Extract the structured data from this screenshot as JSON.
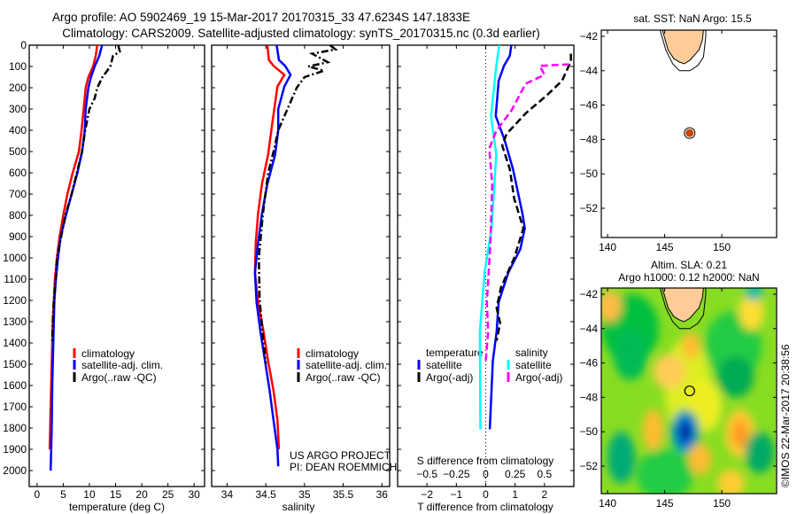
{
  "header": {
    "title_line1": "Argo profile: AO 5902469_19 15-Mar-2017 20170315_33 47.6234S 147.1833E",
    "title_line2": "Climatology: CARS2009. Satellite-adjusted climatology: synTS_20170315.nc (0.3d earlier)"
  },
  "colors": {
    "climatology": "#ff0000",
    "satellite": "#0000ff",
    "argo": "#000000",
    "sal_satellite": "#00ffff",
    "sal_argo": "#ff00ff",
    "land": "#ffcc99",
    "float": "#cc4400"
  },
  "chart_data": [
    {
      "type": "line",
      "id": "temperature",
      "xlabel": "temperature (deg C)",
      "ylabel": "",
      "xlim": [
        -1.5,
        32
      ],
      "ylim": [
        2075,
        0
      ],
      "xticks": [
        0,
        5,
        10,
        15,
        20,
        25,
        30
      ],
      "yticks": [
        0,
        100,
        200,
        300,
        400,
        500,
        600,
        700,
        800,
        900,
        1000,
        1100,
        1200,
        1300,
        1400,
        1500,
        1600,
        1700,
        1800,
        1900,
        2000
      ],
      "legend": [
        "climatology",
        "satellite-adj. clim.",
        "Argo(..raw -QC)"
      ],
      "series": [
        {
          "name": "climatology",
          "depth": [
            0,
            50,
            100,
            150,
            200,
            300,
            400,
            500,
            600,
            700,
            800,
            900,
            1000,
            1100,
            1200,
            1300,
            1400,
            1500,
            1700,
            1900
          ],
          "values": [
            11.5,
            11.2,
            10.7,
            9.8,
            9.3,
            8.9,
            8.5,
            8.0,
            6.8,
            5.8,
            5.0,
            4.3,
            3.8,
            3.4,
            3.2,
            3.0,
            2.9,
            2.8,
            2.6,
            2.4
          ]
        },
        {
          "name": "satellite-adj. clim.",
          "depth": [
            0,
            50,
            100,
            150,
            200,
            300,
            400,
            500,
            600,
            700,
            800,
            900,
            1000,
            1100,
            1200,
            1400,
            1600,
            1800,
            2000
          ],
          "values": [
            12.4,
            11.9,
            11.0,
            10.3,
            9.8,
            9.3,
            9.1,
            8.6,
            7.7,
            6.6,
            5.5,
            4.5,
            4.0,
            3.6,
            3.3,
            3.1,
            2.9,
            2.8,
            2.6
          ]
        },
        {
          "name": "Argo(..raw -QC)",
          "depth": [
            0,
            30,
            50,
            100,
            150,
            200,
            250,
            300,
            400,
            500,
            600,
            700,
            800,
            900,
            1000,
            1100,
            1200,
            1300,
            1400
          ],
          "values": [
            15.5,
            15.8,
            14.5,
            14.0,
            12.5,
            11.5,
            11.0,
            10.0,
            9.2,
            8.6,
            7.6,
            6.6,
            5.4,
            4.6,
            3.8,
            3.6,
            3.2,
            3.0,
            2.9
          ]
        }
      ]
    },
    {
      "type": "line",
      "id": "salinity",
      "xlabel": "salinity",
      "xlim": [
        33.8,
        36.1
      ],
      "ylim": [
        2075,
        0
      ],
      "xticks": [
        34,
        34.5,
        35,
        35.5,
        36
      ],
      "legend": [
        "climatology",
        "satellite-adj. clim.",
        "Argo(..raw -QC)"
      ],
      "annotation": [
        "US ARGO PROJECT",
        "PI: DEAN ROEMMICH"
      ],
      "series": [
        {
          "name": "climatology",
          "depth": [
            0,
            70,
            97,
            139,
            194,
            375,
            514,
            653,
            792,
            931,
            1069,
            1208,
            1347,
            1486,
            1625,
            1764,
            1900
          ],
          "values": [
            34.52,
            34.54,
            34.6,
            34.74,
            34.65,
            34.58,
            34.53,
            34.45,
            34.4,
            34.37,
            34.36,
            34.4,
            34.47,
            34.53,
            34.6,
            34.65,
            34.67
          ]
        },
        {
          "name": "satellite-adj. clim.",
          "depth": [
            0,
            70,
            97,
            139,
            194,
            300,
            400,
            514,
            653,
            792,
            931,
            1069,
            1208,
            1347,
            1486,
            1625,
            1764,
            1900,
            1980
          ],
          "values": [
            34.64,
            34.67,
            34.75,
            34.82,
            34.74,
            34.66,
            34.66,
            34.62,
            34.52,
            34.45,
            34.4,
            34.36,
            34.38,
            34.43,
            34.49,
            34.55,
            34.6,
            34.65,
            34.66
          ]
        },
        {
          "name": "Argo(..raw -QC)",
          "depth": [
            0,
            20,
            40,
            80,
            100,
            120,
            150,
            200,
            300,
            400,
            500,
            600,
            800,
            1000,
            1200,
            1400,
            1500
          ],
          "values": [
            35.33,
            35.4,
            35.1,
            35.3,
            35.05,
            35.25,
            35.0,
            34.9,
            34.78,
            34.66,
            34.6,
            34.53,
            34.46,
            34.41,
            34.42,
            34.47,
            34.5
          ]
        }
      ]
    },
    {
      "type": "line",
      "id": "difference",
      "xlabel": "T difference from climatology",
      "x2label": "S difference from climatology",
      "xlim": [
        -3,
        3
      ],
      "x2lim": [
        -0.75,
        0.75
      ],
      "ylim": [
        2075,
        0
      ],
      "xticks": [
        -2,
        -1,
        0,
        1,
        2
      ],
      "x2ticks": [
        -0.5,
        -0.25,
        0,
        0.25,
        0.5
      ],
      "legend_titles": [
        "temperature",
        "salinity"
      ],
      "legend": [
        "satellite",
        "Argo(-adj)",
        "satellite",
        "Argo(-adj)"
      ],
      "series": [
        {
          "name": "T satellite",
          "axis": "T",
          "depth": [
            0,
            50,
            97,
            167,
            333,
            444,
            583,
            792,
            861,
            958,
            1069,
            1208,
            1347,
            1486,
            1806
          ],
          "values": [
            0.87,
            0.82,
            0.62,
            0.44,
            0.34,
            0.64,
            0.93,
            1.25,
            1.33,
            1.18,
            0.77,
            0.44,
            0.37,
            0.24,
            0.14
          ]
        },
        {
          "name": "T Argo(-adj)",
          "axis": "T",
          "depth": [
            40,
            76,
            167,
            236,
            319,
            417,
            472,
            583,
            722,
            861,
            1000,
            1139,
            1236,
            1306,
            1389
          ],
          "values": [
            2.9,
            2.9,
            2.6,
            2.08,
            1.37,
            0.71,
            0.56,
            0.82,
            0.97,
            1.28,
            0.97,
            0.52,
            0.37,
            0.49,
            0.37
          ]
        },
        {
          "name": "S satellite",
          "axis": "S",
          "depth": [
            0,
            97,
            333,
            514,
            861,
            1069,
            1347,
            1806
          ],
          "values": [
            0.115,
            0.09,
            0.045,
            0.09,
            0.05,
            -0.01,
            -0.05,
            -0.045
          ]
        },
        {
          "name": "S Argo(-adj)",
          "axis": "S",
          "depth": [
            90,
            97,
            139,
            181,
            306,
            403,
            486,
            653,
            931,
            1208,
            1347,
            1486
          ],
          "values": [
            0.71,
            0.46,
            0.5,
            0.34,
            0.22,
            0.09,
            0.03,
            0.055,
            0.04,
            0.01,
            0.02,
            0.0
          ]
        }
      ]
    },
    {
      "type": "scatter",
      "id": "location-map",
      "title": "sat. SST: NaN Argo: 15.5",
      "xlim": [
        139.45,
        154.8
      ],
      "ylim": [
        -53.7,
        -41.64
      ],
      "xticks": [
        140,
        145,
        150
      ],
      "yticks": [
        -42,
        -44,
        -46,
        -48,
        -50,
        -52
      ],
      "float": {
        "lon": 147.1833,
        "lat": -47.6234
      }
    },
    {
      "type": "heatmap",
      "id": "sla-map",
      "title_line1": "Altim. SLA: 0.21",
      "title_line2": "Argo h1000: 0.12 h2000: NaN",
      "xlim": [
        139.45,
        154.8
      ],
      "ylim": [
        -53.6,
        -41.64
      ],
      "xticks": [
        140,
        145,
        150
      ],
      "yticks": [
        -42,
        -44,
        -46,
        -48,
        -50,
        -52
      ],
      "float": {
        "lon": 147.1833,
        "lat": -47.6234
      },
      "features": [
        {
          "lon": 146.8,
          "lat": -50.0,
          "rx": 1.3,
          "ry": 1.3,
          "color": "#00aa99"
        },
        {
          "lon": 146.8,
          "lat": -50.0,
          "rx": 0.9,
          "ry": 1.0,
          "color": "#0077dd"
        },
        {
          "lon": 146.8,
          "lat": -50.0,
          "rx": 0.5,
          "ry": 0.6,
          "color": "#001f99"
        },
        {
          "lon": 151.6,
          "lat": -50.1,
          "rx": 1.3,
          "ry": 1.4,
          "color": "#ffcc33"
        },
        {
          "lon": 151.6,
          "lat": -50.1,
          "rx": 0.7,
          "ry": 0.8,
          "color": "#ff9a22"
        },
        {
          "lon": 144.0,
          "lat": -49.9,
          "rx": 0.9,
          "ry": 1.2,
          "color": "#ffbb33"
        },
        {
          "lon": 148.1,
          "lat": -51.6,
          "rx": 1.0,
          "ry": 0.9,
          "color": "#ffbb33"
        },
        {
          "lon": 147.3,
          "lat": -45.0,
          "rx": 0.8,
          "ry": 0.8,
          "color": "#ffbb33"
        },
        {
          "lon": 145.4,
          "lat": -46.5,
          "rx": 1.4,
          "ry": 1.0,
          "color": "#ffcc55"
        },
        {
          "lon": 140.2,
          "lat": -42.7,
          "rx": 1.0,
          "ry": 0.9,
          "color": "#ffbb44"
        },
        {
          "lon": 152.6,
          "lat": -43.0,
          "rx": 1.1,
          "ry": 1.1,
          "color": "#ffdd33"
        },
        {
          "lon": 150.8,
          "lat": -53.0,
          "rx": 1.2,
          "ry": 0.8,
          "color": "#ffcc33"
        },
        {
          "lon": 142.0,
          "lat": -45.5,
          "rx": 1.5,
          "ry": 1.5,
          "color": "#00bb55"
        },
        {
          "lon": 141.2,
          "lat": -51.5,
          "rx": 1.2,
          "ry": 1.5,
          "color": "#00aa77"
        },
        {
          "lon": 151.2,
          "lat": -46.8,
          "rx": 1.6,
          "ry": 1.2,
          "color": "#00aa55"
        },
        {
          "lon": 152.8,
          "lat": -41.9,
          "rx": 0.8,
          "ry": 0.5,
          "color": "#00bbaa"
        },
        {
          "lon": 153.3,
          "lat": -51.2,
          "rx": 1.3,
          "ry": 1.2,
          "color": "#00aa66"
        }
      ]
    }
  ],
  "land": {
    "coast": [
      [
        144.8,
        -41.64
      ],
      [
        145.3,
        -42.8
      ],
      [
        145.8,
        -43.3
      ],
      [
        146.3,
        -43.5
      ],
      [
        146.7,
        -43.6
      ],
      [
        147.2,
        -43.4
      ],
      [
        147.6,
        -43.1
      ],
      [
        148.0,
        -42.8
      ],
      [
        148.3,
        -42.2
      ],
      [
        148.4,
        -41.64
      ]
    ],
    "contour": [
      [
        144.6,
        -41.64
      ],
      [
        145.1,
        -42.8
      ],
      [
        145.7,
        -43.6
      ],
      [
        146.3,
        -44.0
      ],
      [
        147.2,
        -44.0
      ],
      [
        147.9,
        -43.7
      ],
      [
        148.4,
        -43.2
      ],
      [
        148.6,
        -42.0
      ],
      [
        148.6,
        -41.64
      ]
    ]
  },
  "watermark": "©IMOS 22-Mar-2017 20:38:56"
}
